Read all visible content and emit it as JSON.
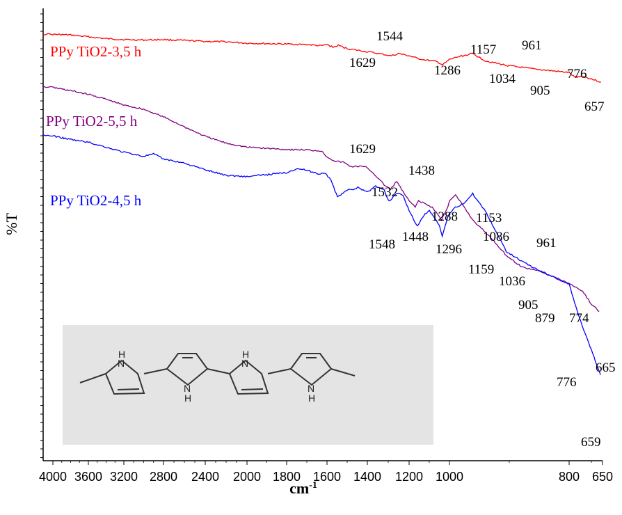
{
  "chart_data": {
    "type": "line",
    "xlabel_base": "cm",
    "xlabel_sup": "-1",
    "ylabel": "%T",
    "xlim": [
      4050,
      650
    ],
    "x_ticks": [
      {
        "value": 4000,
        "label": "4000"
      },
      {
        "value": 3600,
        "label": "3600"
      },
      {
        "value": 3200,
        "label": "3200"
      },
      {
        "value": 2800,
        "label": "2800"
      },
      {
        "value": 2400,
        "label": "2400"
      },
      {
        "value": 2000,
        "label": "2000"
      },
      {
        "value": 1800,
        "label": "1800"
      },
      {
        "value": 1600,
        "label": "1600"
      },
      {
        "value": 1400,
        "label": "1400"
      },
      {
        "value": 1200,
        "label": "1200"
      },
      {
        "value": 1000,
        "label": "1000"
      },
      {
        "value": 800,
        "label": "800"
      },
      {
        "value": 650,
        "label": "650"
      }
    ],
    "series": [
      {
        "name": "PPy TiO2-3,5 h",
        "color": "#ff0000",
        "y_rel": [
          [
            4050,
            0.057
          ],
          [
            3800,
            0.059
          ],
          [
            3600,
            0.063
          ],
          [
            3400,
            0.067
          ],
          [
            3200,
            0.069
          ],
          [
            3000,
            0.07
          ],
          [
            2800,
            0.069
          ],
          [
            2600,
            0.071
          ],
          [
            2400,
            0.073
          ],
          [
            2200,
            0.074
          ],
          [
            2000,
            0.077
          ],
          [
            1800,
            0.079
          ],
          [
            1700,
            0.08
          ],
          [
            1629,
            0.083
          ],
          [
            1600,
            0.08
          ],
          [
            1570,
            0.086
          ],
          [
            1544,
            0.082
          ],
          [
            1500,
            0.089
          ],
          [
            1400,
            0.096
          ],
          [
            1320,
            0.102
          ],
          [
            1286,
            0.105
          ],
          [
            1250,
            0.1
          ],
          [
            1200,
            0.105
          ],
          [
            1157,
            0.111
          ],
          [
            1120,
            0.114
          ],
          [
            1060,
            0.118
          ],
          [
            1034,
            0.125
          ],
          [
            1010,
            0.117
          ],
          [
            985,
            0.107
          ],
          [
            961,
            0.1
          ],
          [
            940,
            0.116
          ],
          [
            905,
            0.126
          ],
          [
            860,
            0.134
          ],
          [
            800,
            0.142
          ],
          [
            776,
            0.152
          ],
          [
            740,
            0.15
          ],
          [
            700,
            0.156
          ],
          [
            657,
            0.163
          ]
        ]
      },
      {
        "name": "PPy TiO2-5,5 h",
        "color": "#800080",
        "y_rel": [
          [
            4050,
            0.173
          ],
          [
            3800,
            0.182
          ],
          [
            3600,
            0.19
          ],
          [
            3400,
            0.201
          ],
          [
            3200,
            0.214
          ],
          [
            3000,
            0.223
          ],
          [
            2800,
            0.24
          ],
          [
            2600,
            0.262
          ],
          [
            2400,
            0.283
          ],
          [
            2200,
            0.298
          ],
          [
            2000,
            0.307
          ],
          [
            1800,
            0.312
          ],
          [
            1700,
            0.313
          ],
          [
            1629,
            0.315
          ],
          [
            1600,
            0.328
          ],
          [
            1560,
            0.338
          ],
          [
            1520,
            0.34
          ],
          [
            1480,
            0.35
          ],
          [
            1438,
            0.349
          ],
          [
            1400,
            0.352
          ],
          [
            1360,
            0.37
          ],
          [
            1320,
            0.39
          ],
          [
            1288,
            0.4
          ],
          [
            1260,
            0.382
          ],
          [
            1230,
            0.405
          ],
          [
            1200,
            0.426
          ],
          [
            1170,
            0.438
          ],
          [
            1153,
            0.426
          ],
          [
            1120,
            0.432
          ],
          [
            1086,
            0.44
          ],
          [
            1060,
            0.454
          ],
          [
            1040,
            0.468
          ],
          [
            1010,
            0.44
          ],
          [
            990,
            0.413
          ],
          [
            975,
            0.44
          ],
          [
            961,
            0.468
          ],
          [
            930,
            0.508
          ],
          [
            905,
            0.546
          ],
          [
            879,
            0.572
          ],
          [
            850,
            0.58
          ],
          [
            800,
            0.608
          ],
          [
            774,
            0.615
          ],
          [
            740,
            0.625
          ],
          [
            700,
            0.654
          ],
          [
            665,
            0.67
          ]
        ]
      },
      {
        "name": "PPy TiO2-4,5 h",
        "color": "#0000ff",
        "y_rel": [
          [
            4050,
            0.28
          ],
          [
            3800,
            0.29
          ],
          [
            3600,
            0.296
          ],
          [
            3400,
            0.307
          ],
          [
            3200,
            0.318
          ],
          [
            3000,
            0.327
          ],
          [
            2900,
            0.322
          ],
          [
            2800,
            0.333
          ],
          [
            2600,
            0.342
          ],
          [
            2400,
            0.357
          ],
          [
            2200,
            0.369
          ],
          [
            2000,
            0.372
          ],
          [
            1800,
            0.363
          ],
          [
            1750,
            0.354
          ],
          [
            1700,
            0.358
          ],
          [
            1640,
            0.366
          ],
          [
            1610,
            0.363
          ],
          [
            1580,
            0.38
          ],
          [
            1548,
            0.418
          ],
          [
            1532,
            0.412
          ],
          [
            1500,
            0.401
          ],
          [
            1470,
            0.402
          ],
          [
            1448,
            0.395
          ],
          [
            1400,
            0.406
          ],
          [
            1360,
            0.393
          ],
          [
            1320,
            0.402
          ],
          [
            1296,
            0.427
          ],
          [
            1260,
            0.408
          ],
          [
            1230,
            0.413
          ],
          [
            1200,
            0.446
          ],
          [
            1170,
            0.475
          ],
          [
            1159,
            0.48
          ],
          [
            1120,
            0.455
          ],
          [
            1100,
            0.448
          ],
          [
            1086,
            0.455
          ],
          [
            1050,
            0.48
          ],
          [
            1036,
            0.505
          ],
          [
            1010,
            0.465
          ],
          [
            990,
            0.44
          ],
          [
            975,
            0.43
          ],
          [
            961,
            0.41
          ],
          [
            940,
            0.448
          ],
          [
            905,
            0.537
          ],
          [
            880,
            0.558
          ],
          [
            860,
            0.573
          ],
          [
            800,
            0.61
          ],
          [
            776,
            0.65
          ],
          [
            740,
            0.703
          ],
          [
            700,
            0.755
          ],
          [
            659,
            0.81
          ]
        ]
      }
    ],
    "peak_labels": {
      "red": [
        "1544",
        "1629",
        "1286",
        "1157",
        "1034",
        "961",
        "905",
        "776",
        "657"
      ],
      "purple": [
        "1629",
        "1438",
        "1153",
        "1086",
        "961",
        "879",
        "774",
        "665"
      ],
      "blue": [
        "1532",
        "1288",
        "1548",
        "1448",
        "1296",
        "1159",
        "1036",
        "905",
        "776",
        "659"
      ]
    }
  },
  "structure": {
    "h_labels": [
      "H",
      "N",
      "H",
      "N",
      "H",
      "N",
      "H",
      "N"
    ]
  }
}
